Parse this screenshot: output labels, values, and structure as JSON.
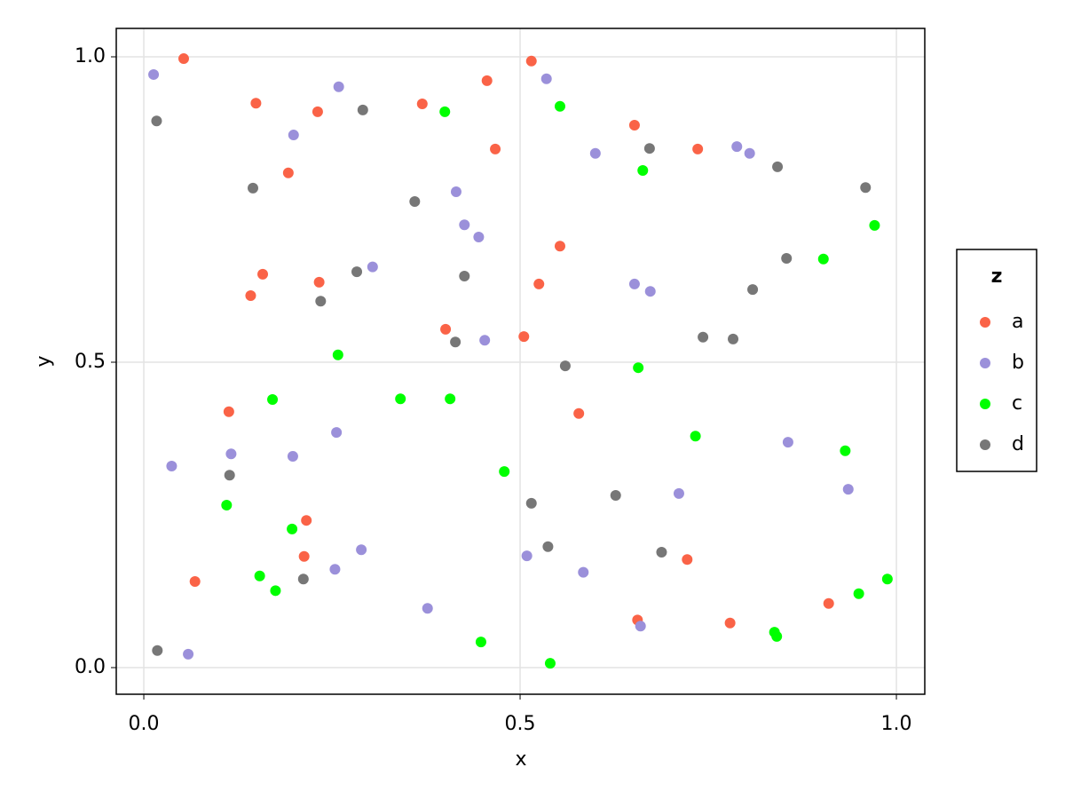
{
  "chart_data": {
    "type": "scatter",
    "x_label": "x",
    "y_label": "y",
    "legend_title": "z",
    "xlim": [
      -0.0366,
      1.0377
    ],
    "ylim": [
      -0.0436,
      1.0465
    ],
    "xticks": [
      {
        "value": 0,
        "label": "0.0"
      },
      {
        "value": 0.5,
        "label": "0.5"
      },
      {
        "value": 1,
        "label": "1.0"
      }
    ],
    "yticks": [
      {
        "value": 0,
        "label": "0.0"
      },
      {
        "value": 0.5,
        "label": "0.5"
      },
      {
        "value": 1,
        "label": "1.0"
      }
    ],
    "grid": true,
    "legend_position": "right",
    "series": [
      {
        "name": "a",
        "color": "#fa6347",
        "x": [
          0.053,
          0.149,
          0.231,
          0.192,
          0.37,
          0.456,
          0.515,
          0.467,
          0.652,
          0.736,
          0.158,
          0.142,
          0.233,
          0.553,
          0.525,
          0.401,
          0.505,
          0.113,
          0.578,
          0.216,
          0.213,
          0.068,
          0.722,
          0.656,
          0.779,
          0.91
        ],
        "values": [
          0.997,
          0.924,
          0.91,
          0.81,
          0.923,
          0.961,
          0.993,
          0.849,
          0.888,
          0.849,
          0.644,
          0.609,
          0.631,
          0.69,
          0.628,
          0.554,
          0.542,
          0.419,
          0.416,
          0.241,
          0.182,
          0.141,
          0.177,
          0.078,
          0.073,
          0.105
        ]
      },
      {
        "name": "b",
        "color": "#9b90da",
        "x": [
          0.013,
          0.259,
          0.199,
          0.535,
          0.6,
          0.415,
          0.788,
          0.805,
          0.426,
          0.445,
          0.304,
          0.652,
          0.673,
          0.453,
          0.037,
          0.116,
          0.198,
          0.256,
          0.856,
          0.711,
          0.936,
          0.289,
          0.254,
          0.509,
          0.584,
          0.377,
          0.66,
          0.059
        ],
        "values": [
          0.971,
          0.951,
          0.872,
          0.964,
          0.842,
          0.779,
          0.853,
          0.842,
          0.725,
          0.705,
          0.656,
          0.628,
          0.616,
          0.536,
          0.33,
          0.35,
          0.346,
          0.385,
          0.369,
          0.285,
          0.292,
          0.193,
          0.161,
          0.183,
          0.156,
          0.097,
          0.068,
          0.022
        ]
      },
      {
        "name": "c",
        "color": "#00ff00",
        "x": [
          0.4,
          0.553,
          0.663,
          0.971,
          0.903,
          0.258,
          0.171,
          0.341,
          0.407,
          0.657,
          0.733,
          0.932,
          0.479,
          0.11,
          0.197,
          0.154,
          0.175,
          0.95,
          0.988,
          0.448,
          0.54,
          0.838,
          0.841
        ],
        "values": [
          0.91,
          0.919,
          0.814,
          0.724,
          0.669,
          0.512,
          0.439,
          0.44,
          0.44,
          0.491,
          0.379,
          0.355,
          0.321,
          0.266,
          0.227,
          0.15,
          0.126,
          0.121,
          0.145,
          0.042,
          0.007,
          0.058,
          0.051
        ]
      },
      {
        "name": "d",
        "color": "#777777",
        "x": [
          0.017,
          0.291,
          0.145,
          0.36,
          0.672,
          0.842,
          0.959,
          0.283,
          0.426,
          0.235,
          0.854,
          0.809,
          0.414,
          0.743,
          0.783,
          0.56,
          0.114,
          0.515,
          0.627,
          0.537,
          0.688,
          0.212,
          0.018
        ],
        "values": [
          0.895,
          0.913,
          0.785,
          0.763,
          0.85,
          0.82,
          0.786,
          0.648,
          0.641,
          0.6,
          0.67,
          0.619,
          0.533,
          0.541,
          0.538,
          0.494,
          0.315,
          0.269,
          0.282,
          0.198,
          0.189,
          0.145,
          0.028
        ]
      }
    ]
  }
}
